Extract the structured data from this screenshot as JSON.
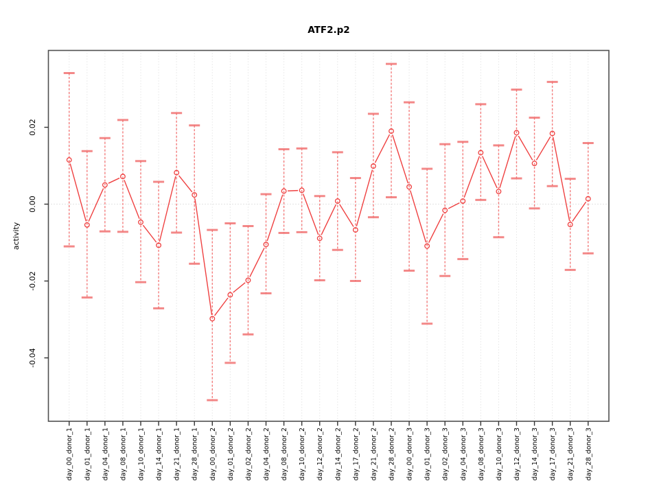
{
  "title": "ATF2.p2",
  "chart_data": {
    "type": "line",
    "title": "ATF2.p2",
    "xlabel": "",
    "ylabel": "activity",
    "legend": "none",
    "grid": "vertical dotted gridlines at each category plus dotted horizontal line at 0",
    "marker": "open-circle",
    "error_bars": true,
    "ylim": [
      -0.0565,
      0.04
    ],
    "yticks": [
      -0.04,
      -0.02,
      0,
      0.02
    ],
    "ytick_labels": [
      "-0.04",
      "-0.02",
      "0.00",
      "0.02"
    ],
    "categories": [
      "day_00_donor_1",
      "day_01_donor_1",
      "day_04_donor_1",
      "day_08_donor_1",
      "day_10_donor_1",
      "day_14_donor_1",
      "day_21_donor_1",
      "day_28_donor_1",
      "day_00_donor_2",
      "day_01_donor_2",
      "day_02_donor_2",
      "day_04_donor_2",
      "day_08_donor_2",
      "day_10_donor_2",
      "day_12_donor_2",
      "day_14_donor_2",
      "day_17_donor_2",
      "day_21_donor_2",
      "day_28_donor_2",
      "day_00_donor_3",
      "day_01_donor_3",
      "day_02_donor_3",
      "day_04_donor_3",
      "day_08_donor_3",
      "day_10_donor_3",
      "day_12_donor_3",
      "day_14_donor_3",
      "day_17_donor_3",
      "day_21_donor_3",
      "day_28_donor_3"
    ],
    "series": [
      {
        "name": "activity",
        "values": [
          0.0115,
          -0.0054,
          0.005,
          0.0072,
          -0.0047,
          -0.0107,
          0.0082,
          0.0024,
          -0.0298,
          -0.0236,
          -0.0198,
          -0.0105,
          0.0034,
          0.0036,
          -0.0089,
          0.0008,
          -0.0067,
          0.0099,
          0.019,
          0.0045,
          -0.0109,
          -0.0016,
          0.0008,
          0.0134,
          0.0033,
          0.0186,
          0.0106,
          0.0184,
          -0.0053,
          0.0014
        ],
        "error_high": [
          0.0341,
          0.0138,
          0.0172,
          0.0219,
          0.0112,
          0.0058,
          0.0237,
          0.0205,
          -0.0067,
          -0.005,
          -0.0057,
          0.0026,
          0.0143,
          0.0145,
          0.0021,
          0.0135,
          0.0068,
          0.0235,
          0.0365,
          0.0265,
          0.0092,
          0.0156,
          0.0162,
          0.026,
          0.0153,
          0.0298,
          0.0225,
          0.0318,
          0.0066,
          0.0159
        ],
        "error_low": [
          -0.011,
          -0.0243,
          -0.0071,
          -0.0072,
          -0.0203,
          -0.0271,
          -0.0074,
          -0.0155,
          -0.051,
          -0.0413,
          -0.0339,
          -0.0232,
          -0.0075,
          -0.0073,
          -0.0198,
          -0.0119,
          -0.02,
          -0.0034,
          0.0018,
          -0.0173,
          -0.0311,
          -0.0187,
          -0.0143,
          0.0011,
          -0.0086,
          0.0067,
          -0.0011,
          0.0047,
          -0.0171,
          -0.0128
        ]
      }
    ],
    "colors": {
      "line": "#ef4040",
      "marker": "#ef4040",
      "error_bar": "#f47c7c",
      "error_cap": "#f06a6a",
      "grid": "#d8d8d8",
      "zero_line": "#c6c6c6",
      "frame": "#4f4f4f",
      "tick": "#333333",
      "text": "#000000",
      "background": "#ffffff"
    }
  }
}
